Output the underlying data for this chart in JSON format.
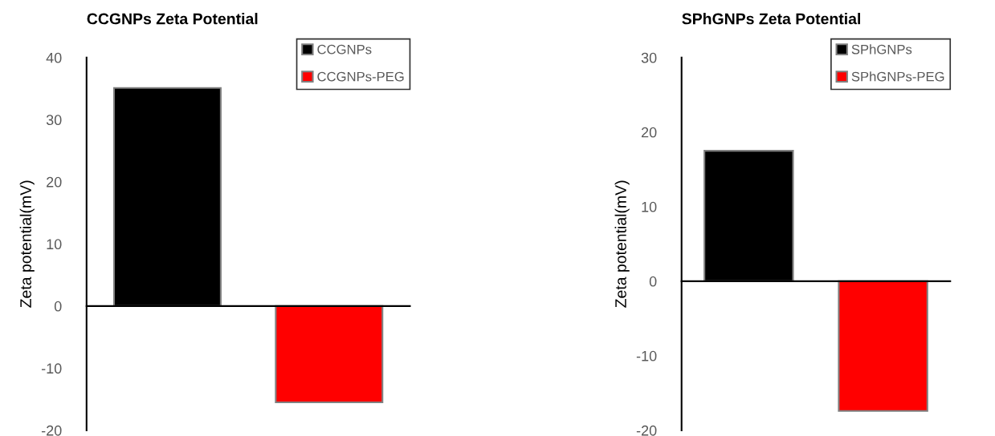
{
  "chart_data": [
    {
      "type": "bar",
      "title": "CCGNPs Zeta Potential",
      "ylabel": "Zeta potential(mV)",
      "categories": [
        null,
        null
      ],
      "series": [
        {
          "name": "CCGNPs",
          "color": "#000000",
          "values": [
            35.1,
            null
          ]
        },
        {
          "name": "CCGNPs-PEG",
          "color": "#ff0000",
          "values": [
            null,
            -15.5
          ]
        }
      ],
      "ylim": [
        -20,
        40
      ],
      "yticks": [
        -20,
        -10,
        0,
        10,
        20,
        30,
        40
      ],
      "legend": "top right"
    },
    {
      "type": "bar",
      "title": "SPhGNPs Zeta Potential",
      "ylabel": "Zeta potential(mV)",
      "categories": [
        null,
        null
      ],
      "series": [
        {
          "name": "SPhGNPs",
          "color": "#000000",
          "values": [
            17.5,
            null
          ]
        },
        {
          "name": "SPhGNPs-PEG",
          "color": "#ff0000",
          "values": [
            null,
            -17.4
          ]
        }
      ],
      "ylim": [
        -20,
        30
      ],
      "yticks": [
        -20,
        -10,
        0,
        10,
        20,
        30
      ],
      "legend": "top right"
    }
  ]
}
